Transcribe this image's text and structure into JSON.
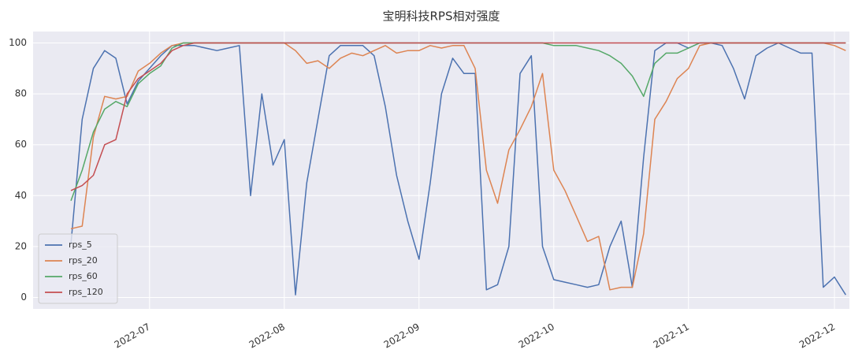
{
  "chart_data": {
    "type": "line",
    "title": "宝明科技RPS相对强度",
    "categories": [
      null,
      null,
      null,
      null,
      null,
      null,
      null,
      "2022-07",
      null,
      null,
      null,
      null,
      null,
      null,
      null,
      null,
      null,
      null,
      null,
      "2022-08",
      null,
      null,
      null,
      null,
      null,
      null,
      null,
      null,
      null,
      null,
      null,
      "2022-09",
      null,
      null,
      null,
      null,
      null,
      null,
      null,
      null,
      null,
      null,
      null,
      "2022-10",
      null,
      null,
      null,
      null,
      null,
      null,
      null,
      null,
      null,
      null,
      null,
      "2022-11",
      null,
      null,
      null,
      null,
      null,
      null,
      null,
      null,
      null,
      null,
      null,
      null,
      "2022-12",
      null
    ],
    "series": [
      {
        "name": "rps_5",
        "color": "#4c72b0",
        "values": [
          21,
          70,
          90,
          97,
          94,
          76,
          85,
          90,
          95,
          99,
          99,
          99,
          98,
          97,
          98,
          99,
          40,
          80,
          52,
          62,
          1,
          45,
          70,
          95,
          99,
          99,
          99,
          95,
          75,
          48,
          30,
          15,
          45,
          80,
          94,
          88,
          88,
          3,
          5,
          20,
          88,
          95,
          20,
          7,
          6,
          5,
          4,
          5,
          20,
          30,
          4,
          55,
          97,
          100,
          100,
          98,
          100,
          100,
          99,
          90,
          78,
          95,
          98,
          100,
          98,
          96,
          96,
          4,
          8,
          1
        ]
      },
      {
        "name": "rps_20",
        "color": "#dd8452",
        "values": [
          27,
          28,
          63,
          79,
          78,
          79,
          89,
          92,
          96,
          99,
          100,
          100,
          100,
          100,
          100,
          100,
          100,
          100,
          100,
          100,
          97,
          92,
          93,
          90,
          94,
          96,
          95,
          97,
          99,
          96,
          97,
          97,
          99,
          98,
          99,
          99,
          90,
          50,
          37,
          58,
          66,
          75,
          88,
          50,
          42,
          32,
          22,
          24,
          3,
          4,
          4,
          25,
          70,
          77,
          86,
          90,
          99,
          100,
          100,
          100,
          100,
          100,
          100,
          100,
          100,
          100,
          100,
          100,
          99,
          97
        ]
      },
      {
        "name": "rps_60",
        "color": "#55a868",
        "values": [
          38,
          50,
          65,
          74,
          77,
          75,
          84,
          88,
          91,
          98,
          100,
          100,
          100,
          100,
          100,
          100,
          100,
          100,
          100,
          100,
          100,
          100,
          100,
          100,
          100,
          100,
          100,
          100,
          100,
          100,
          100,
          100,
          100,
          100,
          100,
          100,
          100,
          100,
          100,
          100,
          100,
          100,
          100,
          99,
          99,
          99,
          98,
          97,
          95,
          92,
          87,
          79,
          92,
          96,
          96,
          98,
          100,
          100,
          100,
          100,
          100,
          100,
          100,
          100,
          100,
          100,
          100,
          100,
          100,
          100
        ]
      },
      {
        "name": "rps_120",
        "color": "#c44e52",
        "values": [
          42,
          44,
          48,
          60,
          62,
          80,
          86,
          89,
          92,
          97,
          99,
          100,
          100,
          100,
          100,
          100,
          100,
          100,
          100,
          100,
          100,
          100,
          100,
          100,
          100,
          100,
          100,
          100,
          100,
          100,
          100,
          100,
          100,
          100,
          100,
          100,
          100,
          100,
          100,
          100,
          100,
          100,
          100,
          100,
          100,
          100,
          100,
          100,
          100,
          100,
          100,
          100,
          100,
          100,
          100,
          100,
          100,
          100,
          100,
          100,
          100,
          100,
          100,
          100,
          100,
          100,
          100,
          100,
          100,
          100
        ]
      }
    ],
    "ylim": [
      -4.5,
      104.5
    ],
    "yticks": [
      0,
      20,
      40,
      60,
      80,
      100
    ],
    "grid": true,
    "legend": "lower left"
  }
}
